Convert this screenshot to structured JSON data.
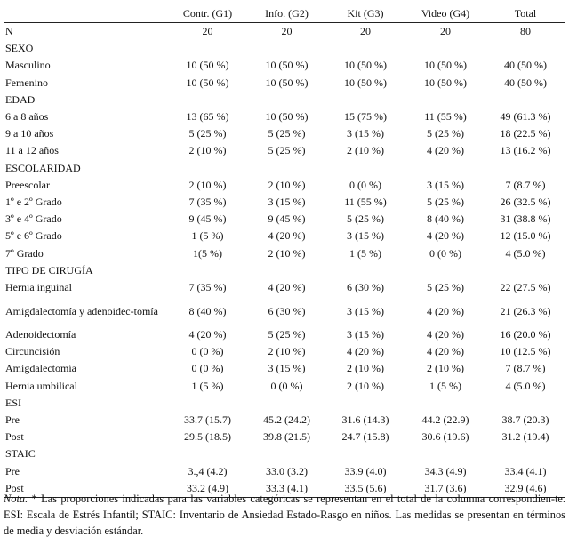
{
  "table": {
    "columns": [
      "",
      "Contr. (G1)",
      "Info. (G2)",
      "Kit (G3)",
      "Video (G4)",
      "Total"
    ],
    "rows": [
      {
        "type": "data",
        "label": "N",
        "cells": [
          "20",
          "20",
          "20",
          "20",
          "80"
        ]
      },
      {
        "type": "section",
        "label": "SEXO"
      },
      {
        "type": "data",
        "label": "Masculino",
        "cells": [
          "10 (50 %)",
          "10 (50 %)",
          "10 (50 %)",
          "10 (50 %)",
          "40 (50 %)"
        ]
      },
      {
        "type": "data",
        "label": "Femenino",
        "cells": [
          "10 (50 %)",
          "10 (50 %)",
          "10 (50 %)",
          "10 (50 %)",
          "40 (50 %)"
        ]
      },
      {
        "type": "section",
        "label": "EDAD"
      },
      {
        "type": "data",
        "label": "6 a 8 años",
        "cells": [
          "13 (65 %)",
          "10 (50 %)",
          "15 (75 %)",
          "11 (55 %)",
          "49 (61.3 %)"
        ]
      },
      {
        "type": "data",
        "label": "9 a 10 años",
        "cells": [
          "5 (25 %)",
          "5 (25 %)",
          "3 (15 %)",
          "5 (25 %)",
          "18 (22.5 %)"
        ]
      },
      {
        "type": "data",
        "label": "11 a 12 años",
        "cells": [
          "2 (10 %)",
          "5 (25 %)",
          "2 (10 %)",
          "4 (20 %)",
          "13 (16.2 %)"
        ]
      },
      {
        "type": "section",
        "label": "ESCOLARIDAD"
      },
      {
        "type": "data",
        "label": "Preescolar",
        "cells": [
          "2 (10 %)",
          "2 (10 %)",
          "0 (0 %)",
          "3 (15 %)",
          "7 (8.7 %)"
        ]
      },
      {
        "type": "data",
        "label": "1º e 2º Grado",
        "cells": [
          "7 (35 %)",
          "3 (15 %)",
          "11 (55 %)",
          "5 (25 %)",
          "26 (32.5 %)"
        ]
      },
      {
        "type": "data",
        "label": "3º e 4º Grado",
        "cells": [
          "9 (45 %)",
          "9 (45 %)",
          "5 (25 %)",
          "8 (40 %)",
          "31 (38.8 %)"
        ]
      },
      {
        "type": "data",
        "label": "5º e 6º Grado",
        "cells": [
          "1 (5 %)",
          "4 (20 %)",
          "3 (15 %)",
          "4 (20 %)",
          "12 (15.0 %)"
        ]
      },
      {
        "type": "data",
        "label": "7º Grado",
        "cells": [
          "1(5 %)",
          "2 (10 %)",
          "1 (5 %)",
          "0 (0 %)",
          "4 (5.0 %)"
        ]
      },
      {
        "type": "section",
        "label": "TIPO DE CIRUGÍA"
      },
      {
        "type": "data",
        "label": "Hernia inguinal",
        "cells": [
          "7 (35 %)",
          "4 (20 %)",
          "6 (30 %)",
          "5 (25 %)",
          "22 (27.5 %)"
        ]
      },
      {
        "type": "data2",
        "label": "Amigdalectomía y adenoidec-tomía",
        "cells": [
          "8 (40 %)",
          "6 (30 %)",
          "3 (15 %)",
          "4 (20 %)",
          "21 (26.3 %)"
        ]
      },
      {
        "type": "data",
        "label": "Adenoidectomía",
        "cells": [
          "4 (20 %)",
          "5 (25 %)",
          "3 (15 %)",
          "4 (20 %)",
          "16 (20.0 %)"
        ]
      },
      {
        "type": "data",
        "label": "Circuncisión",
        "cells": [
          "0 (0 %)",
          "2 (10 %)",
          "4 (20 %)",
          "4 (20 %)",
          "10 (12.5 %)"
        ]
      },
      {
        "type": "data",
        "label": "Amigdalectomía",
        "cells": [
          "0 (0 %)",
          "3 (15 %)",
          "2 (10 %)",
          "2 (10 %)",
          "7 (8.7 %)"
        ]
      },
      {
        "type": "data",
        "label": "Hernia umbilical",
        "cells": [
          "1 (5 %)",
          "0 (0 %)",
          "2 (10 %)",
          "1 (5 %)",
          "4 (5.0 %)"
        ]
      },
      {
        "type": "section",
        "label": "ESI"
      },
      {
        "type": "data",
        "label": "Pre",
        "cells": [
          "33.7 (15.7)",
          "45.2 (24.2)",
          "31.6 (14.3)",
          "44.2 (22.9)",
          "38.7 (20.3)"
        ]
      },
      {
        "type": "data",
        "label": "Post",
        "cells": [
          "29.5 (18.5)",
          "39.8 (21.5)",
          "24.7 (15.8)",
          "30.6 (19.6)",
          "31.2 (19.4)"
        ]
      },
      {
        "type": "section",
        "label": "STAIC"
      },
      {
        "type": "data",
        "label": "Pre",
        "cells": [
          "3.,4 (4.2)",
          "33.0 (3.2)",
          "33.9 (4.0)",
          "34.3 (4.9)",
          "33.4 (4.1)"
        ]
      },
      {
        "type": "data",
        "label": "Post",
        "cells": [
          "33.2 (4.9)",
          "33.3 (4.1)",
          "33.5 (5.6)",
          "31.7 (3.6)",
          "32.9 (4.6)"
        ]
      }
    ]
  },
  "note": {
    "lead": "Nota.",
    "text": " * Las proporciones indicadas para las variables categóricas se representan en el total de la columna correspondien-te. ESI: Escala de Estrés Infantil; STAIC: Inventario de Ansiedad Estado-Rasgo en niños. Las medidas se presentan en términos de media y desviación estándar."
  }
}
